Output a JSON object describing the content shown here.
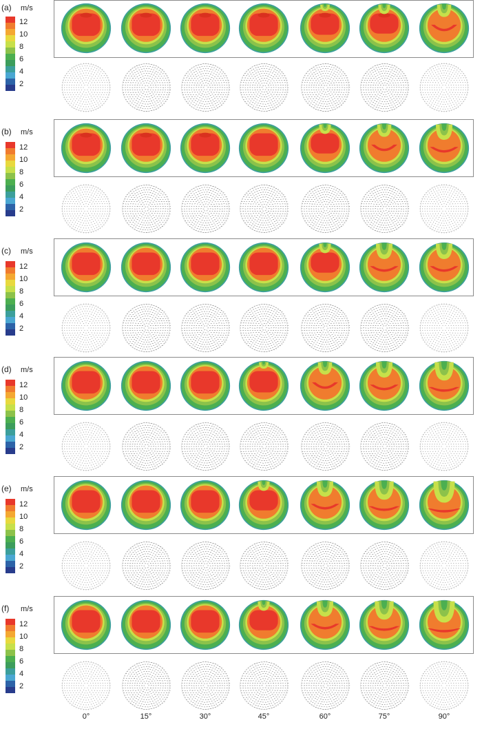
{
  "unit": "m/s",
  "colorbar": {
    "ticks": [
      "12",
      "10",
      "8",
      "6",
      "4",
      "2"
    ],
    "colors": [
      "#e8382b",
      "#f07c2e",
      "#f4a832",
      "#e8d93e",
      "#c7e04a",
      "#8cc24a",
      "#4caf50",
      "#3c9d5c",
      "#3c9f9c",
      "#4aa7d2",
      "#2d63a8",
      "#283c8c"
    ]
  },
  "angles": [
    "0°",
    "15°",
    "30°",
    "45°",
    "60°",
    "75°",
    "90°"
  ],
  "panels": [
    {
      "label": "(a)"
    },
    {
      "label": "(b)"
    },
    {
      "label": "(c)"
    },
    {
      "label": "(d)"
    },
    {
      "label": "(e)"
    },
    {
      "label": "(f)"
    }
  ]
}
